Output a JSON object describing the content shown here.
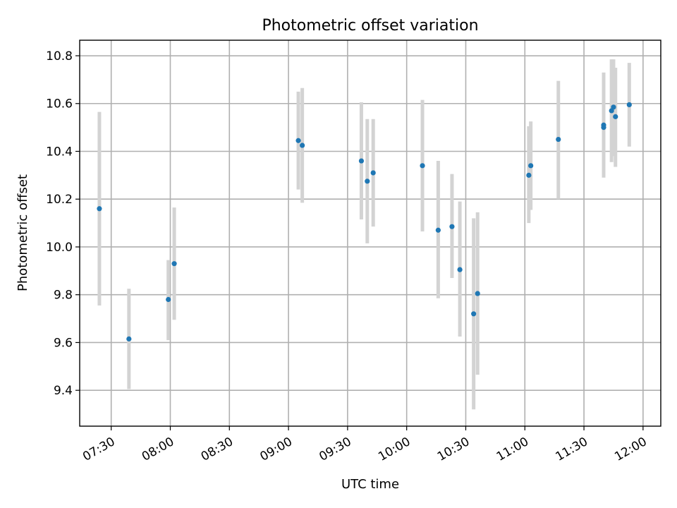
{
  "chart_data": {
    "type": "scatter",
    "title": "Photometric offset variation",
    "xlabel": "UTC time",
    "ylabel": "Photometric offset",
    "xlim": [
      "07:14",
      "12:09"
    ],
    "ylim": [
      9.25,
      10.865
    ],
    "grid": true,
    "x_ticks": [
      "07:30",
      "08:00",
      "08:30",
      "09:00",
      "09:30",
      "10:00",
      "10:30",
      "11:00",
      "11:30",
      "12:00"
    ],
    "y_ticks": [
      "9.4",
      "9.6",
      "9.8",
      "10.0",
      "10.2",
      "10.4",
      "10.6",
      "10.8"
    ],
    "colors": {
      "point": "#1f77b4",
      "errorbar": "#d3d3d3"
    },
    "points": [
      {
        "time": "07:24",
        "y": 10.16,
        "low": 9.755,
        "high": 10.565
      },
      {
        "time": "07:39",
        "y": 9.615,
        "low": 9.405,
        "high": 9.825
      },
      {
        "time": "07:59",
        "y": 9.78,
        "low": 9.61,
        "high": 9.945
      },
      {
        "time": "08:02",
        "y": 9.93,
        "low": 9.695,
        "high": 10.165
      },
      {
        "time": "09:05",
        "y": 10.445,
        "low": 10.24,
        "high": 10.65
      },
      {
        "time": "09:07",
        "y": 10.425,
        "low": 10.185,
        "high": 10.665
      },
      {
        "time": "09:37",
        "y": 10.36,
        "low": 10.115,
        "high": 10.605
      },
      {
        "time": "09:40",
        "y": 10.275,
        "low": 10.015,
        "high": 10.535
      },
      {
        "time": "09:43",
        "y": 10.31,
        "low": 10.085,
        "high": 10.535
      },
      {
        "time": "10:08",
        "y": 10.34,
        "low": 10.065,
        "high": 10.615
      },
      {
        "time": "10:16",
        "y": 10.07,
        "low": 9.785,
        "high": 10.36
      },
      {
        "time": "10:23",
        "y": 10.085,
        "low": 9.87,
        "high": 10.305
      },
      {
        "time": "10:27",
        "y": 9.905,
        "low": 9.625,
        "high": 10.19
      },
      {
        "time": "10:34",
        "y": 9.72,
        "low": 9.32,
        "high": 10.12
      },
      {
        "time": "10:36",
        "y": 9.805,
        "low": 9.465,
        "high": 10.145
      },
      {
        "time": "11:02",
        "y": 10.3,
        "low": 10.1,
        "high": 10.505
      },
      {
        "time": "11:03",
        "y": 10.34,
        "low": 10.155,
        "high": 10.525
      },
      {
        "time": "11:17",
        "y": 10.45,
        "low": 10.2,
        "high": 10.695
      },
      {
        "time": "11:40",
        "y": 10.51,
        "low": 10.29,
        "high": 10.73
      },
      {
        "time": "11:40",
        "y": 10.5,
        "low": 10.33,
        "high": 10.72
      },
      {
        "time": "11:44",
        "y": 10.57,
        "low": 10.355,
        "high": 10.785
      },
      {
        "time": "11:45",
        "y": 10.585,
        "low": 10.38,
        "high": 10.785
      },
      {
        "time": "11:46",
        "y": 10.545,
        "low": 10.335,
        "high": 10.75
      },
      {
        "time": "11:53",
        "y": 10.595,
        "low": 10.42,
        "high": 10.77
      }
    ]
  }
}
